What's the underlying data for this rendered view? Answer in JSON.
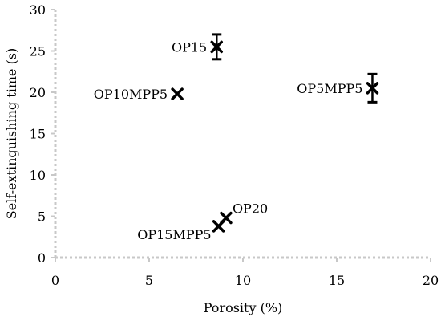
{
  "chart_data": {
    "type": "scatter",
    "title": "",
    "xlabel": "Porosity (%)",
    "ylabel": "Self-extinguishing time (s)",
    "xlim": [
      0,
      20
    ],
    "ylim": [
      0,
      30
    ],
    "xticks": [
      0,
      5,
      10,
      15,
      20
    ],
    "yticks": [
      0,
      5,
      10,
      15,
      20,
      25,
      30
    ],
    "grid": false,
    "marker": "x",
    "color": "#000000",
    "points": [
      {
        "label": "OP15",
        "x": 8.6,
        "y": 25.5,
        "err": 1.5,
        "label_side": "left"
      },
      {
        "label": "OP10MPP5",
        "x": 6.5,
        "y": 19.8,
        "err": 0,
        "label_side": "left"
      },
      {
        "label": "OP5MPP5",
        "x": 16.9,
        "y": 20.5,
        "err": 1.7,
        "label_side": "left"
      },
      {
        "label": "OP20",
        "x": 9.1,
        "y": 4.8,
        "err": 0,
        "label_side": "above-right"
      },
      {
        "label": "OP15MPP5",
        "x": 8.7,
        "y": 3.8,
        "err": 0,
        "label_side": "below-left"
      }
    ]
  }
}
